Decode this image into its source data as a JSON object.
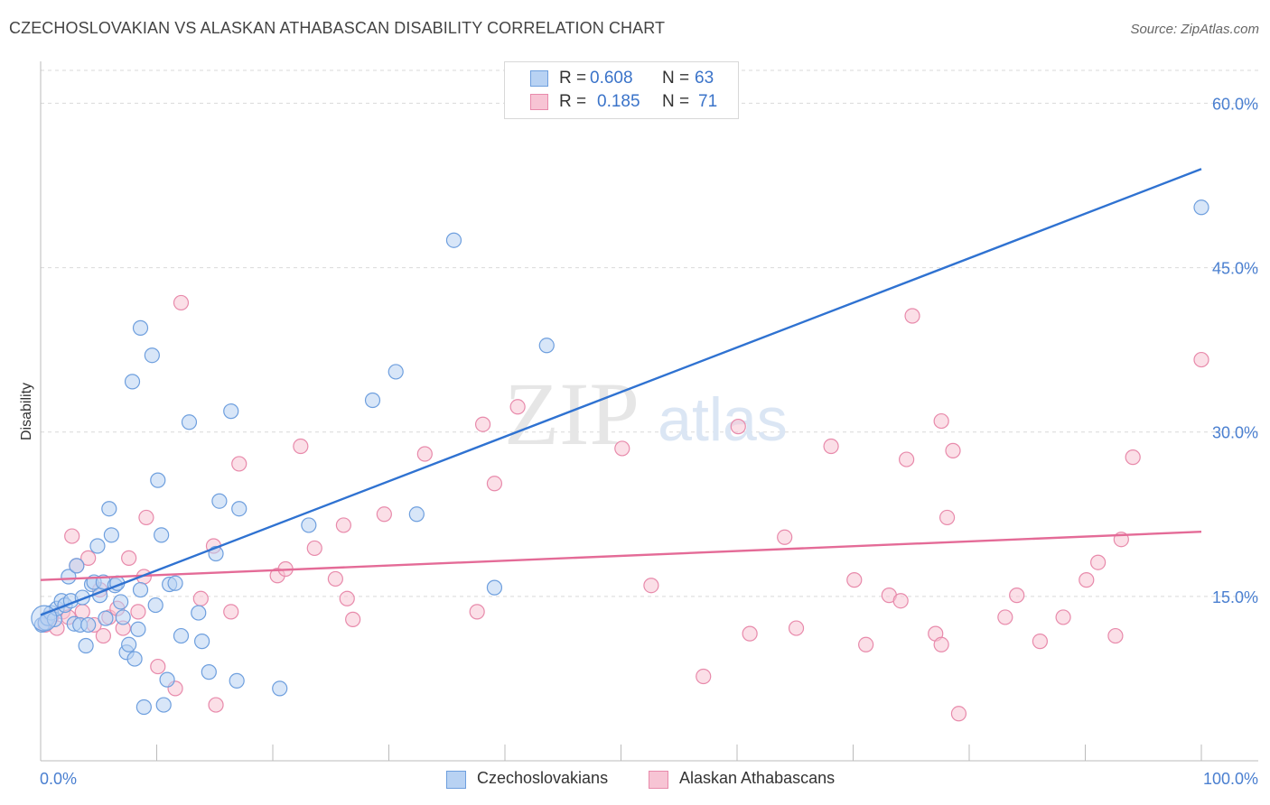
{
  "header": {
    "title": "CZECHOSLOVAKIAN VS ALASKAN ATHABASCAN DISABILITY CORRELATION CHART",
    "source": "Source: ZipAtlas.com"
  },
  "watermark": {
    "zip": "ZIP",
    "atlas": "atlas"
  },
  "legend": {
    "series1": {
      "r_label": "R =",
      "r_value": "0.608",
      "n_label": "N =",
      "n_value": "63"
    },
    "series2": {
      "r_label": "R =",
      "r_value": "0.185",
      "n_label": "N =",
      "n_value": "71"
    }
  },
  "colors": {
    "blue_fill": "#b8d2f3",
    "blue_stroke": "#6e9fde",
    "blue_line": "#2f72d1",
    "pink_fill": "#f7c4d4",
    "pink_stroke": "#e88aab",
    "pink_line": "#e46b97",
    "tick_text": "#4a7fd0",
    "grid": "#d9d9d9"
  },
  "chart_data": {
    "type": "scatter",
    "title": "CZECHOSLOVAKIAN VS ALASKAN ATHABASCAN DISABILITY CORRELATION CHART",
    "xlabel": "",
    "ylabel": "Disability",
    "xlim": [
      0,
      100
    ],
    "ylim": [
      0,
      63
    ],
    "x_tick_labels": [
      "0.0%",
      "100.0%"
    ],
    "y_ticks": [
      15,
      30,
      45,
      60
    ],
    "y_tick_labels": [
      "15.0%",
      "30.0%",
      "45.0%",
      "60.0%"
    ],
    "grid": "horizontal dashed",
    "legend_position": "top-center",
    "series": [
      {
        "name": "Czechoslovakians",
        "color": "#6e9fde",
        "trend": {
          "x": [
            0,
            100
          ],
          "y": [
            13.3,
            54.0
          ]
        },
        "points": [
          [
            0.1,
            12.4
          ],
          [
            0.4,
            12.6
          ],
          [
            0.6,
            13.0
          ],
          [
            0.9,
            13.5
          ],
          [
            1.2,
            12.9
          ],
          [
            1.4,
            13.9
          ],
          [
            1.8,
            14.6
          ],
          [
            2.1,
            14.2
          ],
          [
            2.4,
            16.8
          ],
          [
            2.6,
            14.6
          ],
          [
            2.9,
            12.5
          ],
          [
            3.1,
            17.8
          ],
          [
            3.4,
            12.4
          ],
          [
            3.6,
            14.9
          ],
          [
            3.9,
            10.5
          ],
          [
            4.1,
            12.4
          ],
          [
            4.4,
            16.1
          ],
          [
            4.6,
            16.3
          ],
          [
            4.9,
            19.6
          ],
          [
            5.1,
            15.1
          ],
          [
            5.4,
            16.3
          ],
          [
            5.6,
            13.0
          ],
          [
            5.9,
            23.0
          ],
          [
            6.1,
            20.6
          ],
          [
            6.4,
            16.0
          ],
          [
            6.6,
            16.2
          ],
          [
            6.9,
            14.5
          ],
          [
            7.1,
            13.1
          ],
          [
            7.4,
            9.9
          ],
          [
            7.6,
            10.6
          ],
          [
            7.9,
            34.6
          ],
          [
            8.1,
            9.3
          ],
          [
            8.4,
            12.0
          ],
          [
            8.6,
            15.6
          ],
          [
            8.6,
            39.5
          ],
          [
            8.9,
            4.9
          ],
          [
            9.6,
            37.0
          ],
          [
            9.9,
            14.2
          ],
          [
            10.1,
            25.6
          ],
          [
            10.4,
            20.6
          ],
          [
            10.6,
            5.1
          ],
          [
            10.9,
            7.4
          ],
          [
            11.1,
            16.1
          ],
          [
            11.6,
            16.2
          ],
          [
            12.1,
            11.4
          ],
          [
            12.8,
            30.9
          ],
          [
            13.6,
            13.5
          ],
          [
            13.9,
            10.9
          ],
          [
            14.5,
            8.1
          ],
          [
            15.1,
            18.9
          ],
          [
            15.4,
            23.7
          ],
          [
            16.4,
            31.9
          ],
          [
            16.9,
            7.3
          ],
          [
            17.1,
            23.0
          ],
          [
            20.6,
            6.6
          ],
          [
            23.1,
            21.5
          ],
          [
            28.6,
            32.9
          ],
          [
            30.6,
            35.5
          ],
          [
            32.4,
            22.5
          ],
          [
            35.6,
            47.5
          ],
          [
            39.1,
            15.8
          ],
          [
            43.6,
            37.9
          ],
          [
            100.0,
            50.5
          ]
        ]
      },
      {
        "name": "Alaskan Athabascans",
        "color": "#e88aab",
        "trend": {
          "x": [
            0,
            100
          ],
          "y": [
            16.5,
            20.9
          ]
        },
        "points": [
          [
            0.4,
            12.4
          ],
          [
            0.9,
            13.1
          ],
          [
            1.4,
            12.1
          ],
          [
            1.9,
            13.6
          ],
          [
            2.4,
            13.1
          ],
          [
            2.7,
            20.5
          ],
          [
            3.1,
            17.8
          ],
          [
            3.6,
            13.6
          ],
          [
            4.1,
            18.5
          ],
          [
            4.6,
            12.4
          ],
          [
            5.1,
            15.6
          ],
          [
            5.4,
            11.4
          ],
          [
            5.9,
            13.1
          ],
          [
            6.6,
            13.9
          ],
          [
            7.1,
            12.1
          ],
          [
            7.6,
            18.5
          ],
          [
            8.4,
            13.6
          ],
          [
            8.9,
            16.8
          ],
          [
            9.1,
            22.2
          ],
          [
            10.1,
            8.6
          ],
          [
            11.6,
            6.6
          ],
          [
            12.1,
            41.8
          ],
          [
            13.8,
            14.8
          ],
          [
            14.9,
            19.6
          ],
          [
            15.1,
            5.1
          ],
          [
            16.4,
            13.6
          ],
          [
            17.1,
            27.1
          ],
          [
            20.4,
            16.9
          ],
          [
            21.1,
            17.5
          ],
          [
            22.4,
            28.7
          ],
          [
            23.6,
            19.4
          ],
          [
            25.4,
            16.6
          ],
          [
            26.1,
            21.5
          ],
          [
            26.4,
            14.8
          ],
          [
            26.9,
            12.9
          ],
          [
            29.6,
            22.5
          ],
          [
            33.1,
            28.0
          ],
          [
            37.6,
            13.6
          ],
          [
            38.1,
            30.7
          ],
          [
            39.1,
            25.3
          ],
          [
            41.1,
            32.3
          ],
          [
            50.1,
            28.5
          ],
          [
            52.6,
            16.0
          ],
          [
            57.1,
            7.7
          ],
          [
            60.1,
            30.5
          ],
          [
            61.1,
            11.6
          ],
          [
            64.1,
            20.4
          ],
          [
            65.1,
            12.1
          ],
          [
            68.1,
            28.7
          ],
          [
            70.1,
            16.5
          ],
          [
            71.1,
            10.6
          ],
          [
            73.1,
            15.1
          ],
          [
            74.1,
            14.6
          ],
          [
            74.6,
            27.5
          ],
          [
            75.1,
            40.6
          ],
          [
            77.1,
            11.6
          ],
          [
            77.6,
            10.6
          ],
          [
            77.6,
            31.0
          ],
          [
            78.1,
            22.2
          ],
          [
            78.6,
            28.3
          ],
          [
            79.1,
            4.3
          ],
          [
            83.1,
            13.1
          ],
          [
            84.1,
            15.1
          ],
          [
            86.1,
            10.9
          ],
          [
            88.1,
            13.1
          ],
          [
            90.1,
            16.5
          ],
          [
            91.1,
            18.1
          ],
          [
            92.6,
            11.4
          ],
          [
            93.1,
            20.2
          ],
          [
            94.1,
            27.7
          ],
          [
            100.0,
            36.6
          ]
        ]
      }
    ]
  }
}
